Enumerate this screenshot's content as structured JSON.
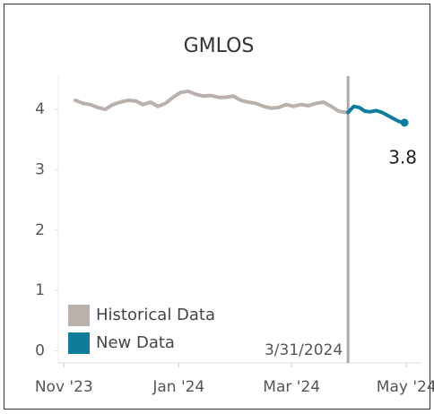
{
  "chart_data": {
    "type": "line",
    "title": "GMLOS",
    "xlim": [
      -3,
      190
    ],
    "xticks": [
      {
        "value": 0,
        "label": "Nov '23"
      },
      {
        "value": 61,
        "label": "Jan '24"
      },
      {
        "value": 121,
        "label": "Mar '24"
      },
      {
        "value": 182,
        "label": "May '24"
      }
    ],
    "ylim": [
      -0.2,
      4.55
    ],
    "yticks": [
      0,
      1,
      2,
      3,
      4
    ],
    "legend": "bottom-left",
    "annotations": [
      {
        "x": 151,
        "label": "3/31/2024",
        "color": "#aaaaaa"
      }
    ],
    "series": [
      {
        "name": "Historical Data",
        "color": "#bab0ac",
        "x": [
          6,
          10,
          14,
          18,
          22,
          26,
          30,
          34,
          38,
          42,
          46,
          50,
          54,
          58,
          62,
          66,
          70,
          74,
          78,
          82,
          86,
          90,
          94,
          98,
          102,
          106,
          110,
          114,
          118,
          122,
          126,
          130,
          134,
          138,
          142,
          146,
          150
        ],
        "values": [
          4.15,
          4.1,
          4.08,
          4.03,
          4.0,
          4.08,
          4.12,
          4.15,
          4.14,
          4.08,
          4.12,
          4.05,
          4.1,
          4.2,
          4.28,
          4.3,
          4.25,
          4.22,
          4.23,
          4.2,
          4.2,
          4.22,
          4.15,
          4.12,
          4.1,
          4.05,
          4.02,
          4.03,
          4.08,
          4.05,
          4.08,
          4.06,
          4.1,
          4.12,
          4.05,
          3.97,
          3.95
        ]
      },
      {
        "name": "New Data",
        "color": "#0f7c9c",
        "x": [
          151,
          154,
          157,
          160,
          163,
          166,
          169,
          172,
          175,
          178,
          181
        ],
        "values": [
          3.95,
          4.05,
          4.03,
          3.97,
          3.96,
          3.98,
          3.95,
          3.9,
          3.85,
          3.8,
          3.78
        ],
        "value_labels": [
          null,
          null,
          null,
          null,
          null,
          null,
          null,
          null,
          null,
          null,
          "3.8"
        ]
      }
    ]
  }
}
